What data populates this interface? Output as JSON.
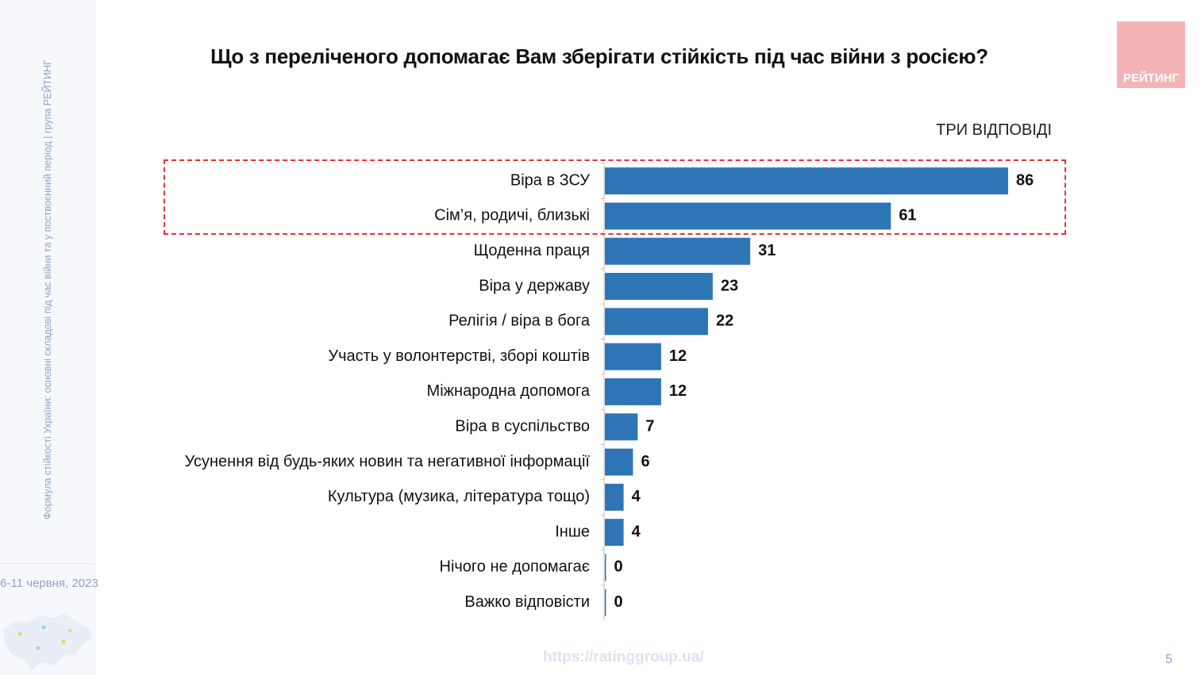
{
  "sidebar": {
    "caption": "Формула стійкості України: основні складові під час війни та у поствоєнний період | група РЕЙТИНГ",
    "date": "6-11 червня, 2023"
  },
  "logo": {
    "text": "РЕЙТИНГ"
  },
  "footer": {
    "url": "https://ratinggroup.ua/",
    "page": "5"
  },
  "colors": {
    "bar": "#2e75b6",
    "highlight": "#e8313a",
    "logo_bg": "#f4b4b5"
  },
  "chart_data": {
    "type": "bar",
    "orientation": "horizontal",
    "title": "Що з переліченого допомагає Вам зберігати стійкість під час війни з росією?",
    "subtitle": "ТРИ ВІДПОВІДІ",
    "categories": [
      "Віра в ЗСУ",
      "Сім’я, родичі, близькі",
      "Щоденна праця",
      "Віра у державу",
      "Релігія / віра в бога",
      "Участь у волонтерстві, зборі коштів",
      "Міжнародна допомога",
      "Віра в суспільство",
      "Усунення від будь-яких новин та негативної інформації",
      "Культура (музика, література тощо)",
      "Інше",
      "Нічого не допомагає",
      "Важко відповісти"
    ],
    "values": [
      86,
      61,
      31,
      23,
      22,
      12,
      12,
      7,
      6,
      4,
      4,
      0,
      0
    ],
    "highlighted_categories": [
      "Віра в ЗСУ",
      "Сім’я, родичі, близькі"
    ],
    "xlim": [
      0,
      100
    ],
    "grid": false,
    "legend": "none"
  }
}
